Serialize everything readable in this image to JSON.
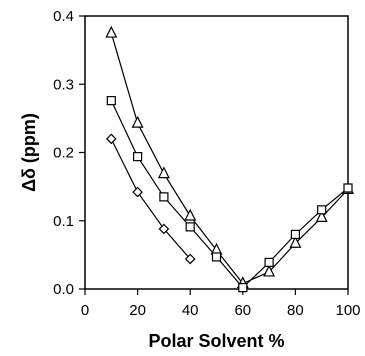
{
  "chart_data": {
    "type": "line",
    "xlabel": "Polar Solvent %",
    "ylabel": "Δδ (ppm)",
    "xlim": [
      0,
      100
    ],
    "ylim": [
      0,
      0.4
    ],
    "xticks": [
      "0",
      "20",
      "40",
      "60",
      "80",
      "100"
    ],
    "yticks": [
      "0.0",
      "0.1",
      "0.2",
      "0.3",
      "0.4"
    ],
    "grid": false,
    "line_color": "#000000",
    "series": [
      {
        "marker": "triangle",
        "x": [
          10,
          20,
          30,
          40,
          50,
          60,
          70,
          80,
          90,
          100
        ],
        "y": [
          0.375,
          0.243,
          0.169,
          0.107,
          0.057,
          0.008,
          0.025,
          0.067,
          0.105,
          0.146
        ]
      },
      {
        "marker": "square",
        "x": [
          10,
          20,
          30,
          40,
          50,
          60,
          70,
          80,
          90,
          100
        ],
        "y": [
          0.276,
          0.194,
          0.135,
          0.091,
          0.047,
          0.002,
          0.039,
          0.08,
          0.116,
          0.148
        ]
      },
      {
        "marker": "diamond",
        "x": [
          10,
          20,
          30,
          40
        ],
        "y": [
          0.22,
          0.142,
          0.088,
          0.044
        ]
      }
    ]
  }
}
